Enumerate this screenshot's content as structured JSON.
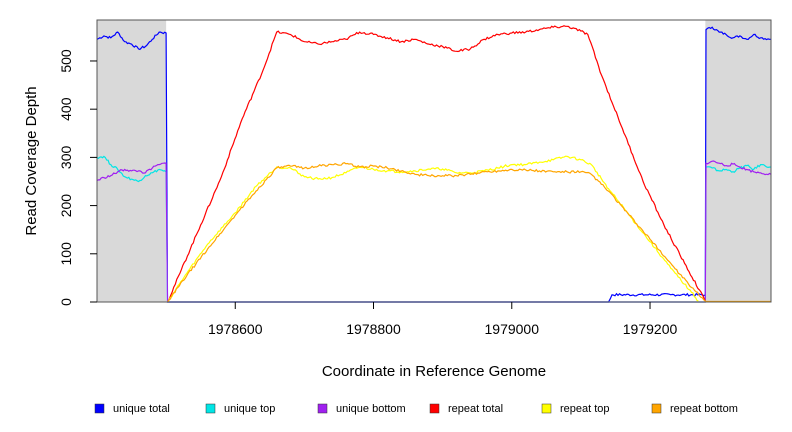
{
  "chart_data": {
    "type": "line",
    "title": "",
    "xlabel": "Coordinate in Reference Genome",
    "ylabel": "Read Coverage Depth",
    "xlim": [
      1978400,
      1979375
    ],
    "ylim": [
      0,
      585
    ],
    "x_ticks": [
      1978600,
      1978800,
      1979000,
      1979200
    ],
    "y_ticks": [
      0,
      100,
      200,
      300,
      400,
      500
    ],
    "shaded_regions": [
      {
        "from": 1978400,
        "to": 1978500,
        "color": "#d9d9d9"
      },
      {
        "from": 1979280,
        "to": 1979375,
        "color": "#d9d9d9"
      }
    ],
    "series": [
      {
        "name": "unique total",
        "color": "#0000ff",
        "points": [
          [
            1978400,
            545
          ],
          [
            1978410,
            552
          ],
          [
            1978420,
            548
          ],
          [
            1978430,
            560
          ],
          [
            1978440,
            540
          ],
          [
            1978450,
            535
          ],
          [
            1978460,
            525
          ],
          [
            1978470,
            530
          ],
          [
            1978480,
            545
          ],
          [
            1978490,
            560
          ],
          [
            1978500,
            558
          ],
          [
            1978502,
            0
          ],
          [
            1979140,
            0
          ],
          [
            1979145,
            15
          ],
          [
            1979230,
            15
          ],
          [
            1979280,
            15
          ],
          [
            1979281,
            565
          ],
          [
            1979290,
            570
          ],
          [
            1979300,
            560
          ],
          [
            1979310,
            555
          ],
          [
            1979320,
            548
          ],
          [
            1979330,
            552
          ],
          [
            1979340,
            545
          ],
          [
            1979350,
            555
          ],
          [
            1979360,
            548
          ],
          [
            1979375,
            545
          ]
        ]
      },
      {
        "name": "unique top",
        "color": "#00e5e5",
        "points": [
          [
            1978400,
            300
          ],
          [
            1978410,
            302
          ],
          [
            1978420,
            285
          ],
          [
            1978430,
            275
          ],
          [
            1978440,
            260
          ],
          [
            1978450,
            255
          ],
          [
            1978460,
            250
          ],
          [
            1978470,
            262
          ],
          [
            1978480,
            268
          ],
          [
            1978490,
            275
          ],
          [
            1978500,
            270
          ],
          [
            1978502,
            0
          ],
          [
            1979280,
            0
          ],
          [
            1979281,
            280
          ],
          [
            1979290,
            278
          ],
          [
            1979300,
            272
          ],
          [
            1979310,
            275
          ],
          [
            1979320,
            270
          ],
          [
            1979330,
            278
          ],
          [
            1979340,
            283
          ],
          [
            1979350,
            275
          ],
          [
            1979360,
            285
          ],
          [
            1979375,
            280
          ]
        ]
      },
      {
        "name": "unique bottom",
        "color": "#a020f0",
        "points": [
          [
            1978400,
            252
          ],
          [
            1978410,
            258
          ],
          [
            1978420,
            262
          ],
          [
            1978430,
            270
          ],
          [
            1978440,
            275
          ],
          [
            1978450,
            272
          ],
          [
            1978460,
            272
          ],
          [
            1978470,
            268
          ],
          [
            1978480,
            278
          ],
          [
            1978490,
            285
          ],
          [
            1978500,
            288
          ],
          [
            1978502,
            0
          ],
          [
            1979280,
            0
          ],
          [
            1979281,
            288
          ],
          [
            1979290,
            292
          ],
          [
            1979300,
            288
          ],
          [
            1979310,
            283
          ],
          [
            1979320,
            286
          ],
          [
            1979330,
            280
          ],
          [
            1979340,
            275
          ],
          [
            1979350,
            270
          ],
          [
            1979360,
            268
          ],
          [
            1979375,
            265
          ]
        ]
      },
      {
        "name": "repeat total",
        "color": "#ff0000",
        "points": [
          [
            1978502,
            0
          ],
          [
            1978520,
            60
          ],
          [
            1978550,
            160
          ],
          [
            1978580,
            260
          ],
          [
            1978610,
            380
          ],
          [
            1978640,
            480
          ],
          [
            1978660,
            560
          ],
          [
            1978680,
            555
          ],
          [
            1978700,
            540
          ],
          [
            1978720,
            535
          ],
          [
            1978740,
            540
          ],
          [
            1978760,
            545
          ],
          [
            1978780,
            560
          ],
          [
            1978800,
            555
          ],
          [
            1978820,
            548
          ],
          [
            1978840,
            540
          ],
          [
            1978860,
            545
          ],
          [
            1978880,
            535
          ],
          [
            1978900,
            530
          ],
          [
            1978920,
            520
          ],
          [
            1978940,
            525
          ],
          [
            1978960,
            545
          ],
          [
            1978980,
            555
          ],
          [
            1979000,
            558
          ],
          [
            1979020,
            560
          ],
          [
            1979040,
            565
          ],
          [
            1979060,
            570
          ],
          [
            1979080,
            572
          ],
          [
            1979100,
            562
          ],
          [
            1979110,
            555
          ],
          [
            1979130,
            470
          ],
          [
            1979160,
            360
          ],
          [
            1979190,
            250
          ],
          [
            1979220,
            160
          ],
          [
            1979250,
            80
          ],
          [
            1979280,
            2
          ]
        ]
      },
      {
        "name": "repeat top",
        "color": "#ffff00",
        "points": [
          [
            1978502,
            0
          ],
          [
            1978530,
            60
          ],
          [
            1978560,
            120
          ],
          [
            1978600,
            185
          ],
          [
            1978630,
            240
          ],
          [
            1978660,
            280
          ],
          [
            1978680,
            278
          ],
          [
            1978700,
            260
          ],
          [
            1978720,
            255
          ],
          [
            1978740,
            258
          ],
          [
            1978760,
            268
          ],
          [
            1978780,
            280
          ],
          [
            1978800,
            275
          ],
          [
            1978820,
            272
          ],
          [
            1978840,
            270
          ],
          [
            1978860,
            272
          ],
          [
            1978880,
            276
          ],
          [
            1978900,
            276
          ],
          [
            1978920,
            268
          ],
          [
            1978940,
            268
          ],
          [
            1978960,
            272
          ],
          [
            1978980,
            278
          ],
          [
            1979000,
            285
          ],
          [
            1979020,
            285
          ],
          [
            1979040,
            290
          ],
          [
            1979060,
            295
          ],
          [
            1979080,
            302
          ],
          [
            1979100,
            295
          ],
          [
            1979115,
            285
          ],
          [
            1979140,
            235
          ],
          [
            1979170,
            180
          ],
          [
            1979200,
            125
          ],
          [
            1979230,
            70
          ],
          [
            1979260,
            20
          ],
          [
            1979270,
            2
          ]
        ]
      },
      {
        "name": "repeat bottom",
        "color": "#ffa500",
        "points": [
          [
            1978502,
            0
          ],
          [
            1978530,
            55
          ],
          [
            1978560,
            110
          ],
          [
            1978600,
            180
          ],
          [
            1978630,
            230
          ],
          [
            1978660,
            278
          ],
          [
            1978680,
            282
          ],
          [
            1978700,
            278
          ],
          [
            1978720,
            282
          ],
          [
            1978740,
            285
          ],
          [
            1978760,
            287
          ],
          [
            1978780,
            280
          ],
          [
            1978800,
            282
          ],
          [
            1978820,
            278
          ],
          [
            1978840,
            272
          ],
          [
            1978860,
            265
          ],
          [
            1978880,
            262
          ],
          [
            1978900,
            262
          ],
          [
            1978920,
            262
          ],
          [
            1978940,
            265
          ],
          [
            1978960,
            270
          ],
          [
            1978980,
            272
          ],
          [
            1979000,
            275
          ],
          [
            1979020,
            274
          ],
          [
            1979040,
            272
          ],
          [
            1979060,
            270
          ],
          [
            1979080,
            270
          ],
          [
            1979100,
            270
          ],
          [
            1979115,
            265
          ],
          [
            1979140,
            230
          ],
          [
            1979170,
            180
          ],
          [
            1979200,
            130
          ],
          [
            1979230,
            80
          ],
          [
            1979260,
            30
          ],
          [
            1979280,
            2
          ],
          [
            1979281,
            1
          ],
          [
            1979375,
            1
          ]
        ]
      }
    ],
    "legend": [
      "unique total",
      "unique top",
      "unique bottom",
      "repeat total",
      "repeat top",
      "repeat bottom"
    ],
    "legend_position": "bottom"
  }
}
